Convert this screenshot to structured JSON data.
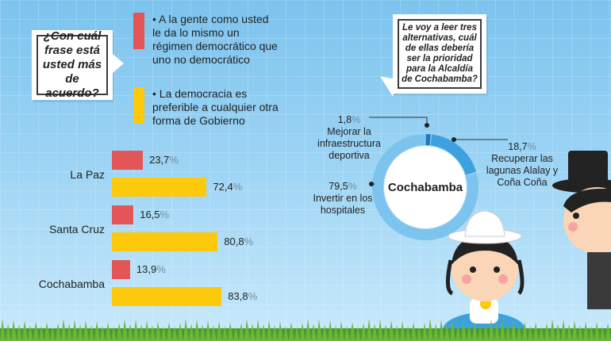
{
  "question_left": "¿Con cuál frase está usted más de acuerdo?",
  "question_right": "Le voy a leer tres alternativas, cuál de ellas debería ser la prioridad para la Alcaldía de Cochabamba?",
  "colors": {
    "red": "#e45557",
    "yellow": "#fcc90c",
    "donut_dark": "#3da1de",
    "donut_light": "#7cc3ee"
  },
  "chart_data": [
    {
      "type": "bar",
      "orientation": "horizontal",
      "categories": [
        "La Paz",
        "Santa Cruz",
        "Cochabamba"
      ],
      "series": [
        {
          "name": "• A la gente como usted le da lo mismo un régimen democrático que uno no democrático",
          "values": [
            23.7,
            16.5,
            13.9
          ],
          "labels": [
            "23,7",
            "16,5",
            "13,9"
          ],
          "color": "#e45557"
        },
        {
          "name": "• La democracia es preferible a cualquier otra forma de Gobierno",
          "values": [
            72.4,
            80.8,
            83.8
          ],
          "labels": [
            "72,4",
            "80,8",
            "83,8"
          ],
          "color": "#fcc90c"
        }
      ],
      "unit": "%"
    },
    {
      "type": "pie",
      "title": "Cochabamba",
      "slices": [
        {
          "label": "Mejorar la infraestructura deportiva",
          "value": 1.8,
          "display": "1,8"
        },
        {
          "label": "Recuperar las lagunas Alalay y Coña Coña",
          "value": 18.7,
          "display": "18,7"
        },
        {
          "label": "Invertir en los hospitales",
          "value": 79.5,
          "display": "79,5"
        }
      ],
      "unit": "%"
    }
  ]
}
